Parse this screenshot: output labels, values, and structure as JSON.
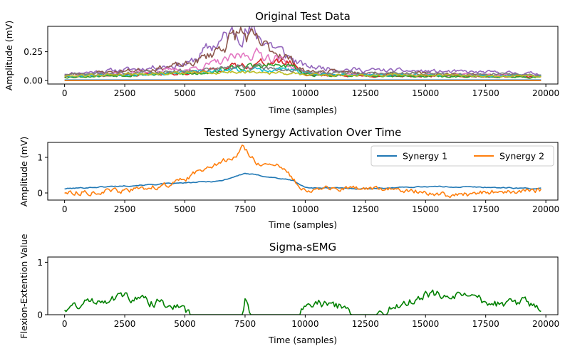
{
  "chart_data": [
    {
      "type": "line",
      "title": "Original Test Data",
      "xlabel": "Time (samples)",
      "ylabel": "Amplitude (mV)",
      "xlim": [
        -700,
        20500
      ],
      "ylim": [
        -0.03,
        0.47
      ],
      "xticks": [
        0,
        2500,
        5000,
        7500,
        10000,
        12500,
        15000,
        17500,
        20000
      ],
      "xtick_labels": [
        "0",
        "2500",
        "5000",
        "7500",
        "10000",
        "12500",
        "15000",
        "17500",
        "20000"
      ],
      "yticks": [
        0.0,
        0.25
      ],
      "ytick_labels": [
        "0.00",
        "0.25"
      ],
      "x_range": [
        0,
        19800
      ],
      "series": [
        {
          "color": "#9467bd",
          "seed": 11,
          "keypoints": [
            [
              0,
              0.06
            ],
            [
              3000,
              0.1
            ],
            [
              5200,
              0.15
            ],
            [
              6000,
              0.28
            ],
            [
              7300,
              0.45
            ],
            [
              8300,
              0.36
            ],
            [
              9200,
              0.22
            ],
            [
              10000,
              0.12
            ],
            [
              12500,
              0.09
            ],
            [
              15000,
              0.08
            ],
            [
              17500,
              0.07
            ],
            [
              19800,
              0.06
            ]
          ]
        },
        {
          "color": "#8c564b",
          "seed": 23,
          "keypoints": [
            [
              0,
              0.05
            ],
            [
              3000,
              0.09
            ],
            [
              5200,
              0.14
            ],
            [
              6000,
              0.22
            ],
            [
              7300,
              0.42
            ],
            [
              8200,
              0.3
            ],
            [
              9000,
              0.24
            ],
            [
              10000,
              0.08
            ],
            [
              12500,
              0.07
            ],
            [
              15000,
              0.06
            ],
            [
              17500,
              0.05
            ],
            [
              19800,
              0.04
            ]
          ]
        },
        {
          "color": "#e377c2",
          "seed": 37,
          "keypoints": [
            [
              0,
              0.04
            ],
            [
              3000,
              0.07
            ],
            [
              5200,
              0.1
            ],
            [
              6500,
              0.16
            ],
            [
              7800,
              0.24
            ],
            [
              8800,
              0.2
            ],
            [
              10000,
              0.06
            ],
            [
              12500,
              0.05
            ],
            [
              15000,
              0.05
            ],
            [
              17500,
              0.05
            ],
            [
              19800,
              0.04
            ]
          ]
        },
        {
          "color": "#d62728",
          "seed": 41,
          "keypoints": [
            [
              0,
              0.03
            ],
            [
              3000,
              0.05
            ],
            [
              5500,
              0.07
            ],
            [
              7000,
              0.12
            ],
            [
              8500,
              0.16
            ],
            [
              9500,
              0.15
            ],
            [
              10000,
              0.05
            ],
            [
              12500,
              0.04
            ],
            [
              15000,
              0.04
            ],
            [
              19800,
              0.03
            ]
          ]
        },
        {
          "color": "#2ca02c",
          "seed": 53,
          "keypoints": [
            [
              0,
              0.03
            ],
            [
              3000,
              0.05
            ],
            [
              5500,
              0.06
            ],
            [
              7000,
              0.11
            ],
            [
              8500,
              0.13
            ],
            [
              9500,
              0.12
            ],
            [
              10000,
              0.05
            ],
            [
              12500,
              0.04
            ],
            [
              19800,
              0.03
            ]
          ]
        },
        {
          "color": "#17becf",
          "seed": 67,
          "keypoints": [
            [
              0,
              0.04
            ],
            [
              3000,
              0.06
            ],
            [
              5500,
              0.07
            ],
            [
              7000,
              0.09
            ],
            [
              9000,
              0.1
            ],
            [
              10000,
              0.06
            ],
            [
              12500,
              0.05
            ],
            [
              19800,
              0.04
            ]
          ]
        },
        {
          "color": "#7f7f7f",
          "seed": 71,
          "keypoints": [
            [
              0,
              0.05
            ],
            [
              3000,
              0.07
            ],
            [
              5500,
              0.09
            ],
            [
              7500,
              0.12
            ],
            [
              9000,
              0.1
            ],
            [
              10000,
              0.07
            ],
            [
              15000,
              0.06
            ],
            [
              19800,
              0.05
            ]
          ]
        },
        {
          "color": "#bcbd22",
          "seed": 79,
          "keypoints": [
            [
              0,
              0.04
            ],
            [
              3000,
              0.06
            ],
            [
              6000,
              0.07
            ],
            [
              8000,
              0.08
            ],
            [
              10000,
              0.05
            ],
            [
              19800,
              0.04
            ]
          ]
        },
        {
          "color": "#1f77b4",
          "seed": 83,
          "keypoints": [
            [
              0,
              0.005
            ],
            [
              19800,
              0.005
            ]
          ],
          "flat": true
        },
        {
          "color": "#ff7f0e",
          "seed": 89,
          "keypoints": [
            [
              0,
              0.0
            ],
            [
              19800,
              0.0
            ]
          ],
          "flat": true
        }
      ]
    },
    {
      "type": "line",
      "title": "Tested Synergy Activation Over Time",
      "xlabel": "Time (samples)",
      "ylabel": "Amplitude (mV)",
      "xlim": [
        -700,
        20500
      ],
      "ylim": [
        -0.2,
        1.42
      ],
      "xticks": [
        0,
        2500,
        5000,
        7500,
        10000,
        12500,
        15000,
        17500,
        20000
      ],
      "xtick_labels": [
        "0",
        "2500",
        "5000",
        "7500",
        "10000",
        "12500",
        "15000",
        "17500",
        "20000"
      ],
      "yticks": [
        0,
        1
      ],
      "ytick_labels": [
        "0",
        "1"
      ],
      "legend": "top-right",
      "x_range": [
        0,
        19800
      ],
      "series": [
        {
          "name": "Synergy 1",
          "color": "#1f77b4",
          "seed": 101,
          "noise": 0.015,
          "keypoints": [
            [
              0,
              0.12
            ],
            [
              2500,
              0.2
            ],
            [
              5000,
              0.28
            ],
            [
              6500,
              0.34
            ],
            [
              7500,
              0.55
            ],
            [
              8500,
              0.45
            ],
            [
              9500,
              0.35
            ],
            [
              10000,
              0.15
            ],
            [
              12500,
              0.12
            ],
            [
              15000,
              0.18
            ],
            [
              17500,
              0.16
            ],
            [
              19800,
              0.12
            ]
          ]
        },
        {
          "name": "Synergy 2",
          "color": "#ff7f0e",
          "seed": 113,
          "noise": 0.08,
          "keypoints": [
            [
              0,
              0.02
            ],
            [
              2500,
              0.05
            ],
            [
              4000,
              0.2
            ],
            [
              5000,
              0.35
            ],
            [
              6000,
              0.8
            ],
            [
              7000,
              0.95
            ],
            [
              7400,
              1.3
            ],
            [
              8000,
              0.85
            ],
            [
              9000,
              0.7
            ],
            [
              10000,
              0.1
            ],
            [
              12500,
              0.12
            ],
            [
              15000,
              0.05
            ],
            [
              16000,
              -0.1
            ],
            [
              17500,
              0.02
            ],
            [
              19800,
              0.06
            ]
          ]
        }
      ]
    },
    {
      "type": "line",
      "title": "Sigma-sEMG",
      "xlabel": "Time (samples)",
      "ylabel": "Flexion-Extention Value",
      "xlim": [
        -700,
        20500
      ],
      "ylim": [
        0,
        1.1
      ],
      "xticks": [
        0,
        2500,
        5000,
        7500,
        10000,
        12500,
        15000,
        17500,
        20000
      ],
      "xtick_labels": [
        "0",
        "2500",
        "5000",
        "7500",
        "10000",
        "12500",
        "15000",
        "17500",
        "20000"
      ],
      "yticks": [
        0,
        1
      ],
      "ytick_labels": [
        "0",
        "1"
      ],
      "x_range": [
        0,
        19800
      ],
      "series": [
        {
          "color": "#008000",
          "seed": 131,
          "noise": 0.09,
          "keypoints": [
            [
              0,
              0.12
            ],
            [
              1500,
              0.3
            ],
            [
              2500,
              0.35
            ],
            [
              3500,
              0.25
            ],
            [
              4500,
              0.2
            ],
            [
              5000,
              0.05
            ],
            [
              5200,
              0.0
            ],
            [
              7400,
              0.0
            ],
            [
              7500,
              0.3
            ],
            [
              7700,
              0.0
            ],
            [
              9800,
              0.0
            ],
            [
              10000,
              0.25
            ],
            [
              11500,
              0.15
            ],
            [
              12000,
              0.0
            ],
            [
              13000,
              0.0
            ],
            [
              14000,
              0.2
            ],
            [
              15000,
              0.4
            ],
            [
              16000,
              0.35
            ],
            [
              17000,
              0.3
            ],
            [
              18000,
              0.2
            ],
            [
              19000,
              0.25
            ],
            [
              19800,
              0.1
            ]
          ]
        }
      ]
    }
  ]
}
